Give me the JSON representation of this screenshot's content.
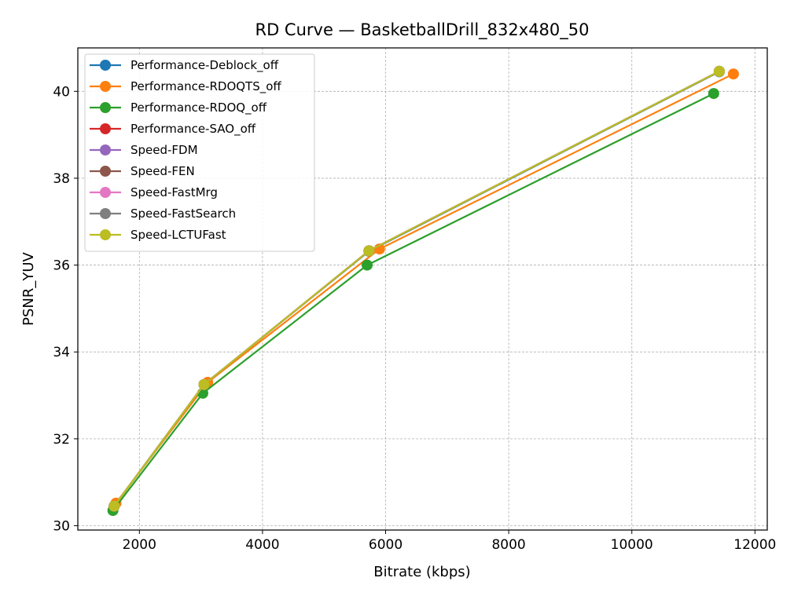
{
  "chart_data": {
    "type": "line",
    "title": "RD Curve — BasketballDrill_832x480_50",
    "xlabel": "Bitrate (kbps)",
    "ylabel": "PSNR_YUV",
    "xlim": [
      1000,
      12200
    ],
    "ylim": [
      29.9,
      41.0
    ],
    "xticks": [
      2000,
      4000,
      6000,
      8000,
      10000,
      12000
    ],
    "yticks": [
      30,
      32,
      34,
      36,
      38,
      40
    ],
    "grid": true,
    "legend_position": "top-left",
    "series": [
      {
        "name": "Performance-Deblock_off",
        "color": "#1f77b4",
        "points": [
          [
            1590,
            30.45
          ],
          [
            3050,
            33.25
          ],
          [
            5730,
            36.32
          ],
          [
            11420,
            40.45
          ]
        ]
      },
      {
        "name": "Performance-RDOQTS_off",
        "color": "#ff7f0e",
        "points": [
          [
            1620,
            30.52
          ],
          [
            3110,
            33.3
          ],
          [
            5900,
            36.37
          ],
          [
            11650,
            40.4
          ]
        ]
      },
      {
        "name": "Performance-RDOQ_off",
        "color": "#2ca02c",
        "points": [
          [
            1570,
            30.35
          ],
          [
            3030,
            33.05
          ],
          [
            5700,
            36.0
          ],
          [
            11330,
            39.95
          ]
        ]
      },
      {
        "name": "Performance-SAO_off",
        "color": "#d62728",
        "points": [
          [
            1590,
            30.45
          ],
          [
            3050,
            33.25
          ],
          [
            5730,
            36.33
          ],
          [
            11420,
            40.46
          ]
        ]
      },
      {
        "name": "Speed-FDM",
        "color": "#9467bd",
        "points": [
          [
            1590,
            30.45
          ],
          [
            3050,
            33.25
          ],
          [
            5730,
            36.33
          ],
          [
            11420,
            40.46
          ]
        ]
      },
      {
        "name": "Speed-FEN",
        "color": "#8c564b",
        "points": [
          [
            1590,
            30.45
          ],
          [
            3050,
            33.25
          ],
          [
            5730,
            36.33
          ],
          [
            11420,
            40.46
          ]
        ]
      },
      {
        "name": "Speed-FastMrg",
        "color": "#e377c2",
        "points": [
          [
            1590,
            30.45
          ],
          [
            3050,
            33.25
          ],
          [
            5730,
            36.33
          ],
          [
            11420,
            40.46
          ]
        ]
      },
      {
        "name": "Speed-FastSearch",
        "color": "#7f7f7f",
        "points": [
          [
            1590,
            30.45
          ],
          [
            3050,
            33.25
          ],
          [
            5730,
            36.33
          ],
          [
            11420,
            40.46
          ]
        ]
      },
      {
        "name": "Speed-LCTUFast",
        "color": "#bcbd22",
        "points": [
          [
            1590,
            30.45
          ],
          [
            3050,
            33.25
          ],
          [
            5730,
            36.33
          ],
          [
            11420,
            40.46
          ]
        ]
      }
    ]
  }
}
